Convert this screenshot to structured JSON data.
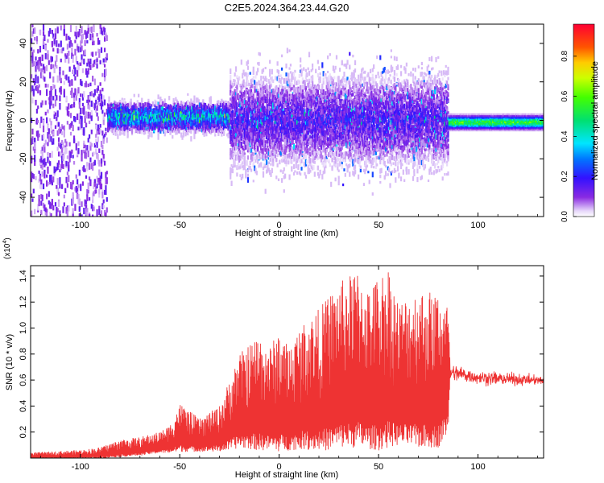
{
  "figure_title": "C2E5.2024.364.23.44.G20",
  "chart_data": [
    {
      "type": "heatmap",
      "title": "C2E5.2024.364.23.44.G20",
      "xlabel": "Height of straight line (km)",
      "ylabel": "Frequency (Hz)",
      "xlim": [
        -125,
        133
      ],
      "ylim": [
        -50,
        50
      ],
      "xticks": [
        -100,
        -50,
        0,
        50,
        100
      ],
      "xtick_labels": [
        "-100",
        "-50",
        "0",
        "50",
        "100"
      ],
      "yticks": [
        -40,
        -20,
        0,
        20,
        40
      ],
      "ytick_labels": [
        "-40",
        "-20",
        "0",
        "20",
        "40"
      ],
      "colorbar": {
        "label": "Normalized spectral amplitude",
        "range": [
          0.0,
          0.96
        ],
        "ticks": [
          0.0,
          0.2,
          0.4,
          0.6,
          0.8
        ],
        "tick_labels": [
          "0.0",
          "0.2",
          "0.4",
          "0.6",
          "0.8"
        ],
        "colormap": "rainbow (violet to red)"
      },
      "regions": [
        {
          "x": [
            -125,
            -87
          ],
          "freq_center": 0,
          "freq_spread": 50,
          "amplitude": 0.1
        },
        {
          "x": [
            -87,
            -25
          ],
          "freq_center": 2,
          "freq_spread": 7,
          "amplitude": 0.32
        },
        {
          "x": [
            -25,
            85
          ],
          "freq_center": 0,
          "freq_spread": 22,
          "amplitude": 0.15
        },
        {
          "x": [
            85,
            133
          ],
          "freq_center": -1,
          "freq_spread": 2,
          "amplitude": 0.55
        }
      ]
    },
    {
      "type": "line",
      "xlabel": "Height of straight line (km)",
      "ylabel": "SNR (10 * v/v)",
      "y_multiplier": "(x10",
      "y_multiplier_exp": "4",
      "y_multiplier_close": ")",
      "xlim": [
        -125,
        133
      ],
      "ylim": [
        0,
        1.48
      ],
      "xticks": [
        -100,
        -50,
        0,
        50,
        100
      ],
      "xtick_labels": [
        "-100",
        "-50",
        "0",
        "50",
        "100"
      ],
      "yticks": [
        0.2,
        0.4,
        0.6,
        0.8,
        1.0,
        1.2,
        1.4
      ],
      "ytick_labels": [
        "0.2",
        "0.4",
        "0.6",
        "0.8",
        "1.0",
        "1.2",
        "1.4"
      ],
      "color": "#ee3333",
      "envelope": {
        "x": [
          -125,
          -100,
          -90,
          -80,
          -70,
          -60,
          -55,
          -50,
          -40,
          -30,
          -25,
          -20,
          -10,
          -5,
          0,
          5,
          10,
          20,
          25,
          30,
          40,
          45,
          50,
          55,
          60,
          70,
          80,
          85,
          86,
          90,
          100,
          110,
          120,
          133
        ],
        "upper": [
          0.04,
          0.06,
          0.08,
          0.14,
          0.16,
          0.2,
          0.25,
          0.42,
          0.3,
          0.4,
          0.6,
          0.8,
          0.95,
          0.85,
          0.98,
          0.85,
          1.0,
          1.15,
          1.25,
          1.35,
          1.45,
          1.3,
          1.4,
          1.48,
          1.2,
          1.3,
          1.28,
          1.2,
          0.7,
          0.7,
          0.66,
          0.65,
          0.64,
          0.62
        ],
        "lower": [
          0.0,
          0.0,
          0.0,
          0.01,
          0.02,
          0.04,
          0.04,
          0.05,
          0.05,
          0.05,
          0.06,
          0.08,
          0.06,
          0.06,
          0.05,
          0.06,
          0.07,
          0.06,
          0.06,
          0.08,
          0.08,
          0.07,
          0.06,
          0.08,
          0.1,
          0.08,
          0.08,
          0.2,
          0.62,
          0.6,
          0.58,
          0.57,
          0.57,
          0.57
        ]
      }
    }
  ]
}
